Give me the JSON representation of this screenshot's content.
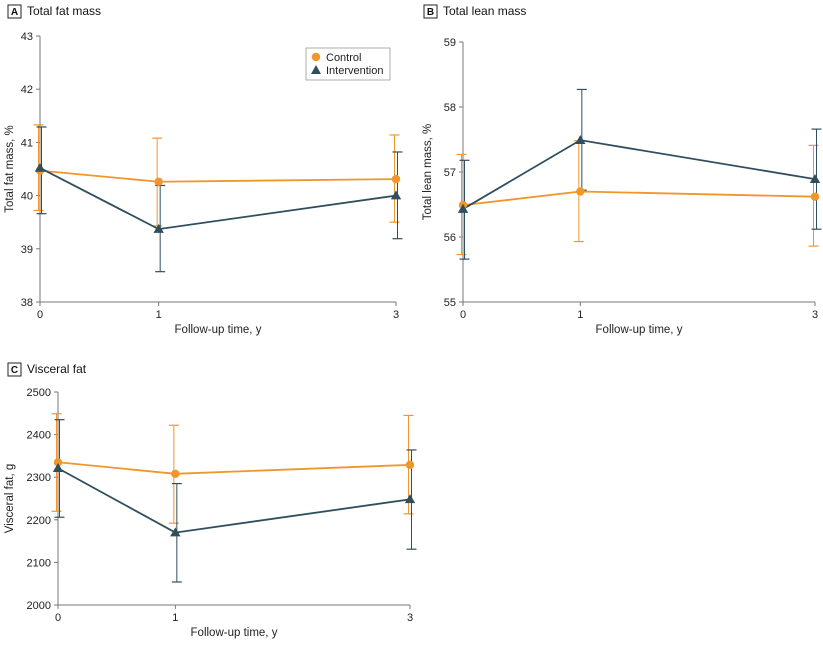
{
  "chart_data": [
    {
      "type": "line",
      "panel_letter": "A",
      "title": "Total fat mass",
      "xlabel": "Follow-up time, y",
      "ylabel": "Total fat mass, %",
      "x": [
        0,
        1,
        3
      ],
      "xticks": [
        "0",
        "1",
        "3"
      ],
      "ylim": [
        38,
        43
      ],
      "yticks": [
        "38",
        "39",
        "40",
        "41",
        "42",
        "43"
      ],
      "legend": "top-right",
      "series": [
        {
          "name": "Control",
          "color": "#F0962A",
          "marker": "circle",
          "values": [
            40.47,
            40.26,
            40.31
          ],
          "lower": [
            39.72,
            39.43,
            39.5
          ],
          "upper": [
            41.33,
            41.08,
            41.14
          ]
        },
        {
          "name": "Intervention",
          "color": "#2F4F5E",
          "marker": "triangle",
          "values": [
            40.52,
            39.37,
            40.0
          ],
          "lower": [
            39.66,
            38.57,
            39.19
          ],
          "upper": [
            41.29,
            40.19,
            40.82
          ]
        }
      ]
    },
    {
      "type": "line",
      "panel_letter": "B",
      "title": "Total lean mass",
      "xlabel": "Follow-up time, y",
      "ylabel": "Total lean mass, %",
      "x": [
        0,
        1,
        3
      ],
      "xticks": [
        "0",
        "1",
        "3"
      ],
      "ylim": [
        55,
        59
      ],
      "yticks": [
        "55",
        "56",
        "57",
        "58",
        "59"
      ],
      "series": [
        {
          "name": "Control",
          "color": "#F0962A",
          "marker": "circle",
          "values": [
            56.49,
            56.7,
            56.62
          ],
          "lower": [
            55.73,
            55.93,
            55.86
          ],
          "upper": [
            57.27,
            57.48,
            57.41
          ]
        },
        {
          "name": "Intervention",
          "color": "#2F4F5E",
          "marker": "triangle",
          "values": [
            56.43,
            57.49,
            56.89
          ],
          "lower": [
            55.66,
            56.72,
            56.12
          ],
          "upper": [
            57.18,
            58.27,
            57.66
          ]
        }
      ]
    },
    {
      "type": "line",
      "panel_letter": "C",
      "title": "Visceral fat",
      "xlabel": "Follow-up time, y",
      "ylabel": "Visceral fat, g",
      "x": [
        0,
        1,
        3
      ],
      "xticks": [
        "0",
        "1",
        "3"
      ],
      "ylim": [
        2000,
        2500
      ],
      "yticks": [
        "2000",
        "2100",
        "2200",
        "2300",
        "2400",
        "2500"
      ],
      "series": [
        {
          "name": "Control",
          "color": "#F0962A",
          "marker": "circle",
          "values": [
            2335,
            2308,
            2329
          ],
          "lower": [
            2220,
            2192,
            2214
          ],
          "upper": [
            2449,
            2422,
            2445
          ]
        },
        {
          "name": "Intervention",
          "color": "#2F4F5E",
          "marker": "triangle",
          "values": [
            2321,
            2170,
            2248
          ],
          "lower": [
            2206,
            2054,
            2131
          ],
          "upper": [
            2435,
            2285,
            2364
          ]
        }
      ]
    }
  ]
}
